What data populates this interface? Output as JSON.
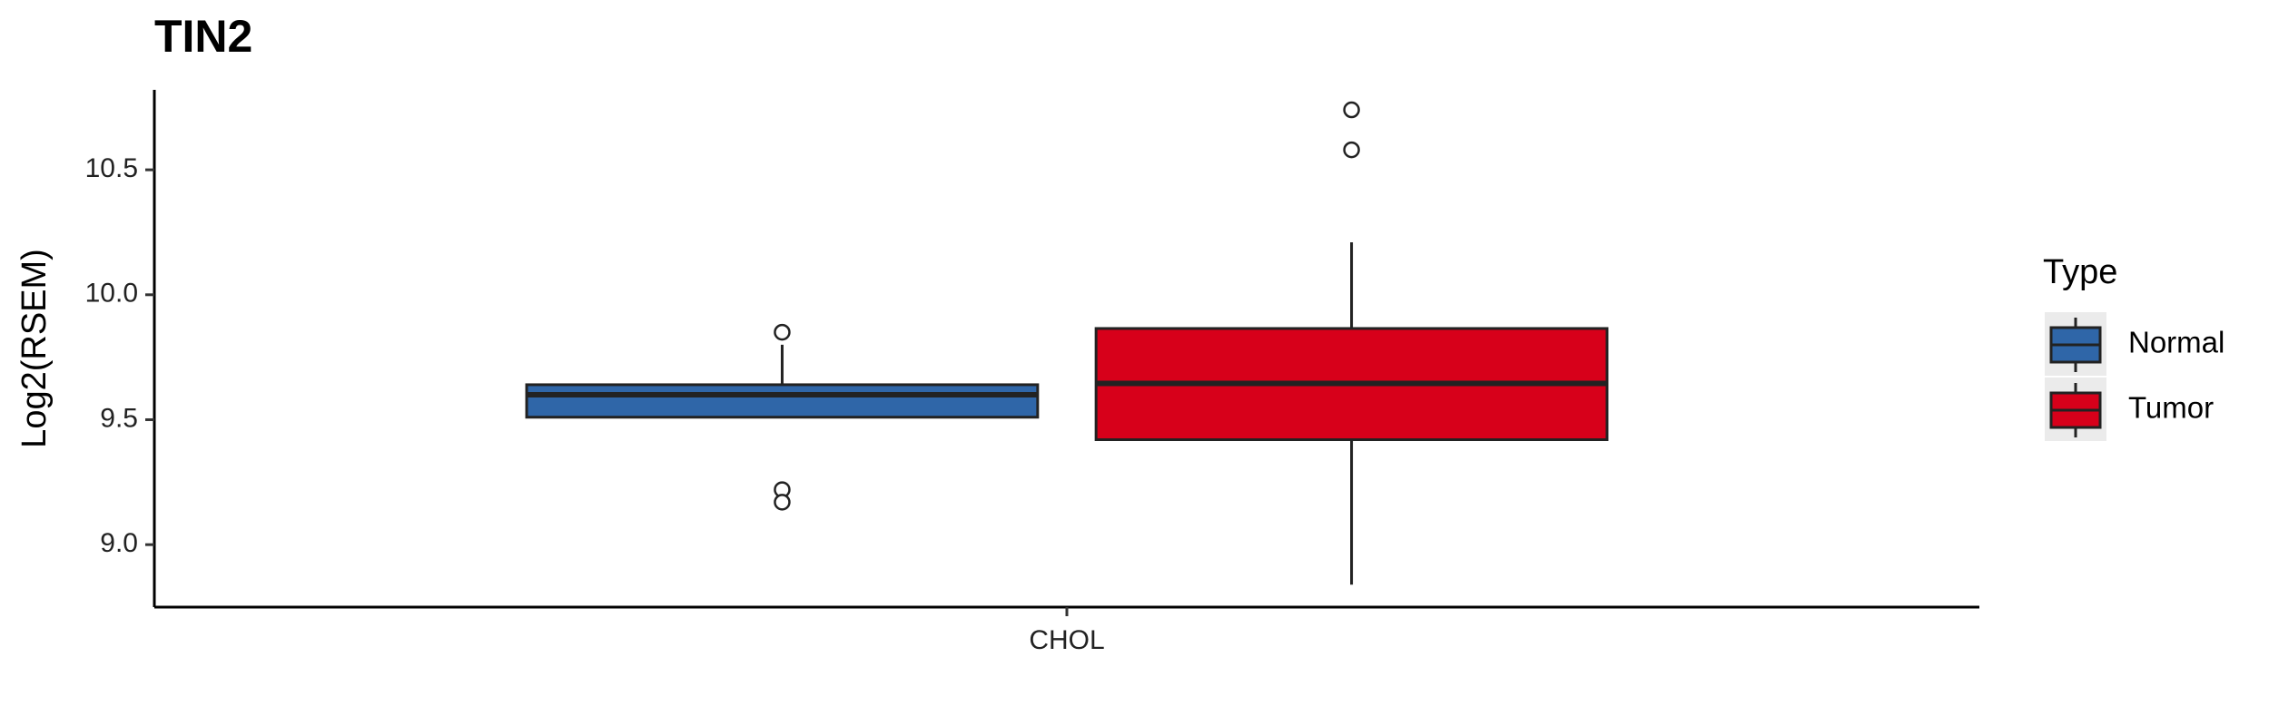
{
  "chart_data": {
    "type": "box",
    "title": "TIN2",
    "y_label": "Log2(RSEM)",
    "categories": [
      "CHOL"
    ],
    "legend_title": "Type",
    "series": [
      {
        "name": "Normal",
        "color": "#2f66a8",
        "q1": 9.51,
        "median": 9.6,
        "q3": 9.64,
        "whisker_low": 9.51,
        "whisker_high": 9.8,
        "outliers": [
          9.85,
          9.22,
          9.17
        ]
      },
      {
        "name": "Tumor",
        "color": "#d7001a",
        "q1": 9.42,
        "median": 9.645,
        "q3": 9.865,
        "whisker_low": 8.84,
        "whisker_high": 10.21,
        "outliers": [
          10.58,
          10.74
        ]
      }
    ],
    "ylim": [
      8.75,
      10.82
    ],
    "yticks": [
      {
        "value": 9.0,
        "label": "9.0"
      },
      9.5,
      {
        "value": 10.0,
        "label": "10.0"
      },
      10.5
    ]
  }
}
